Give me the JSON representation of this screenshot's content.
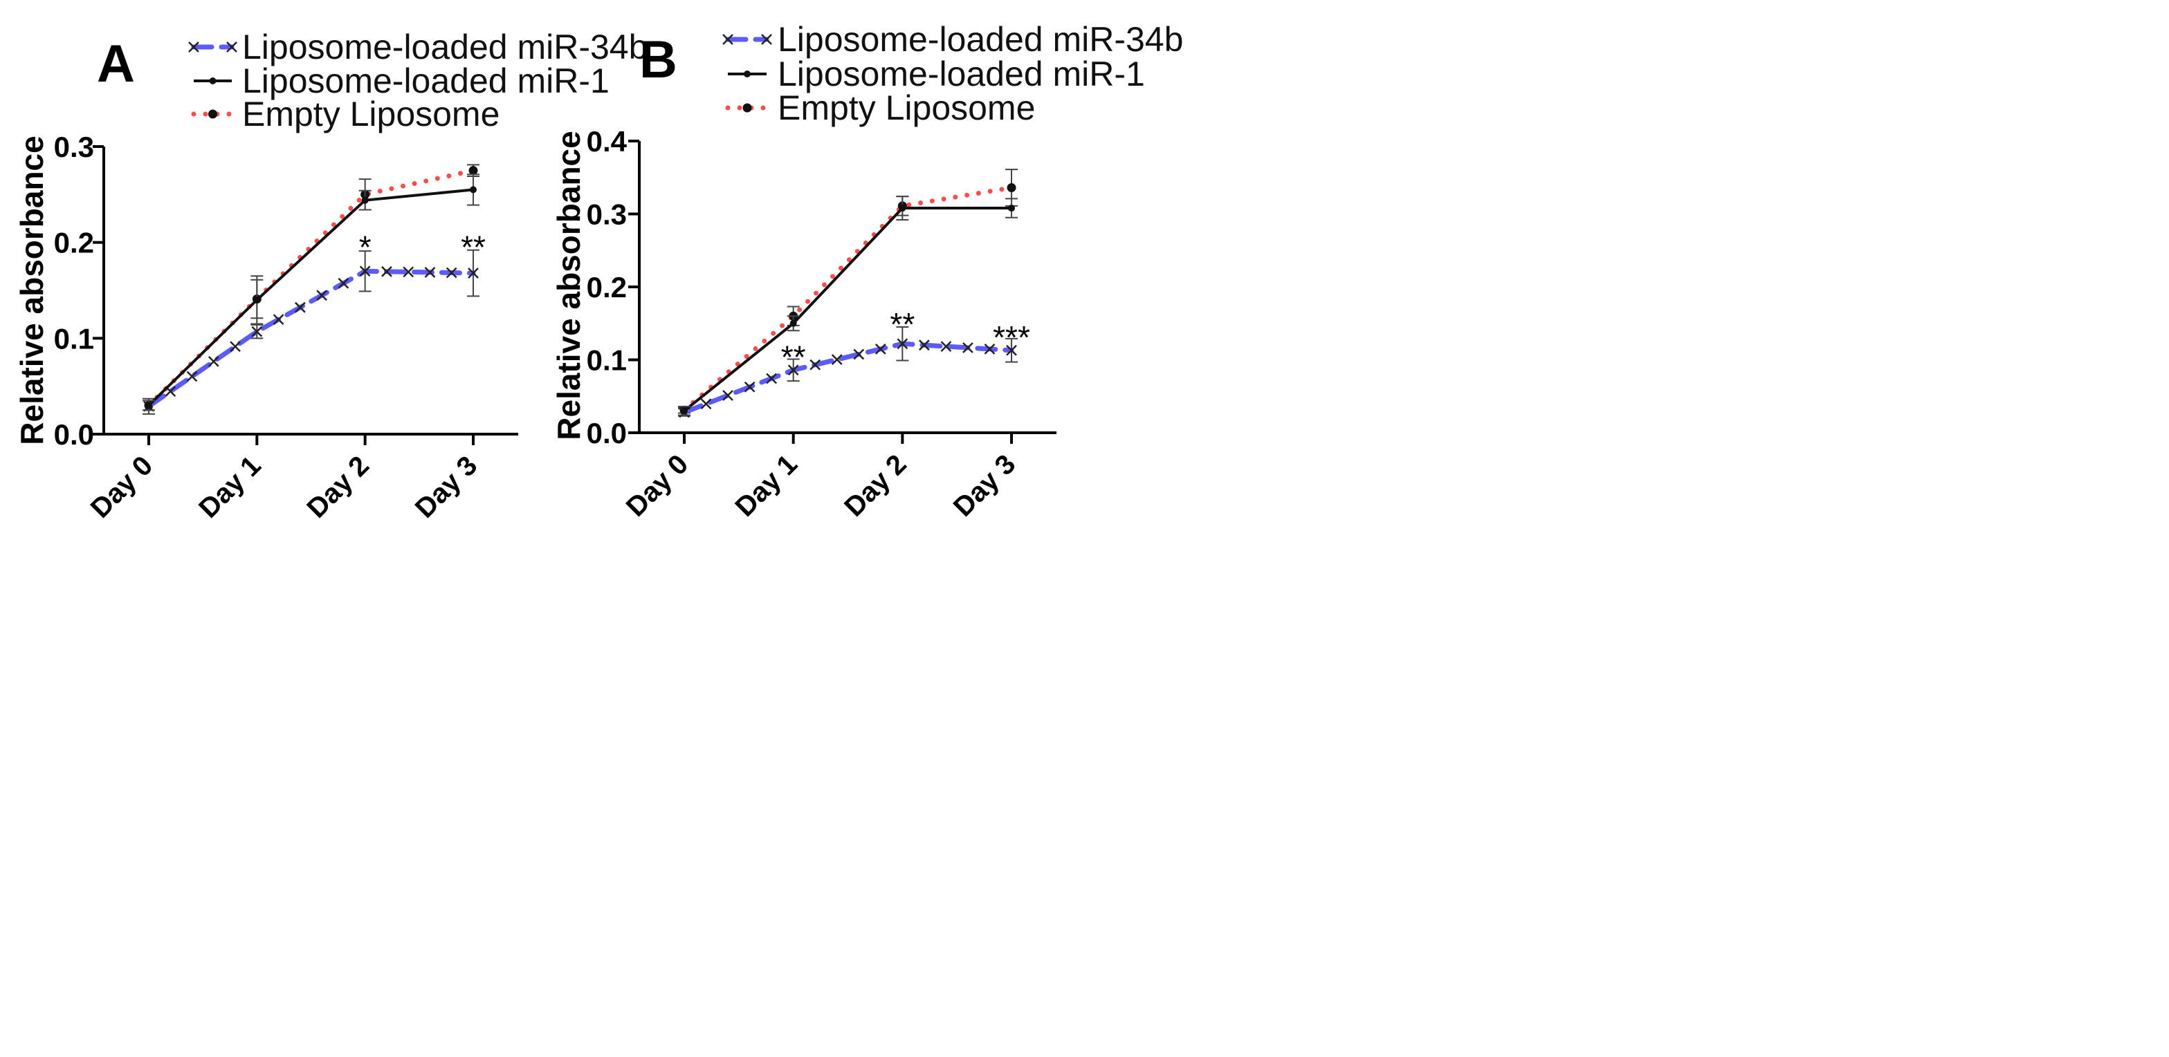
{
  "chart_data": [
    {
      "type": "line",
      "panel": "A",
      "title": "",
      "xlabel": "",
      "ylabel": "Relative absorbance",
      "categories": [
        "Day 0",
        "Day 1",
        "Day 2",
        "Day 3"
      ],
      "yticks": [
        "0.0",
        "0.1",
        "0.2",
        "0.3"
      ],
      "ylim": [
        0,
        0.3
      ],
      "legend_position": "top",
      "series": [
        {
          "name": "Liposome-loaded miR-34b",
          "color": "#5b5bff",
          "style": "dashed-x",
          "values": [
            0.029,
            0.107,
            0.17,
            0.168
          ],
          "errors": [
            0.008,
            0.007,
            0.021,
            0.024
          ]
        },
        {
          "name": "Liposome-loaded miR-1",
          "color": "#111111",
          "style": "solid",
          "values": [
            0.03,
            0.14,
            0.244,
            0.255
          ],
          "errors": [
            0.005,
            0.025,
            0.01,
            0.016
          ]
        },
        {
          "name": "Empty Liposome",
          "color": "#ff4d4d",
          "style": "dotted",
          "values": [
            0.03,
            0.141,
            0.25,
            0.275
          ],
          "errors": [
            0.005,
            0.02,
            0.016,
            0.006
          ]
        }
      ],
      "annotations": [
        {
          "category": "Day 2",
          "label": "*",
          "y": 0.195
        },
        {
          "category": "Day 3",
          "label": "**",
          "y": 0.195
        }
      ]
    },
    {
      "type": "line",
      "panel": "B",
      "title": "",
      "xlabel": "",
      "ylabel": "Relative absorbance",
      "categories": [
        "Day 0",
        "Day 1",
        "Day 2",
        "Day 3"
      ],
      "yticks": [
        "0.0",
        "0.1",
        "0.2",
        "0.3",
        "0.4"
      ],
      "ylim": [
        0,
        0.4
      ],
      "legend_position": "top",
      "series": [
        {
          "name": "Liposome-loaded miR-34b",
          "color": "#5b5bff",
          "style": "dashed-x",
          "values": [
            0.028,
            0.086,
            0.122,
            0.113
          ],
          "errors": [
            0.005,
            0.015,
            0.023,
            0.016
          ]
        },
        {
          "name": "Liposome-loaded miR-1",
          "color": "#111111",
          "style": "solid",
          "values": [
            0.03,
            0.15,
            0.308,
            0.308
          ],
          "errors": [
            0.006,
            0.01,
            0.016,
            0.013
          ]
        },
        {
          "name": "Empty Liposome",
          "color": "#ff4d4d",
          "style": "dotted",
          "values": [
            0.031,
            0.16,
            0.311,
            0.336
          ],
          "errors": [
            0.004,
            0.013,
            0.013,
            0.025
          ]
        }
      ],
      "annotations": [
        {
          "category": "Day 1",
          "label": "**",
          "y": 0.104
        },
        {
          "category": "Day 2",
          "label": "**",
          "y": 0.149
        },
        {
          "category": "Day 3",
          "label": "***",
          "y": 0.131
        }
      ]
    }
  ]
}
